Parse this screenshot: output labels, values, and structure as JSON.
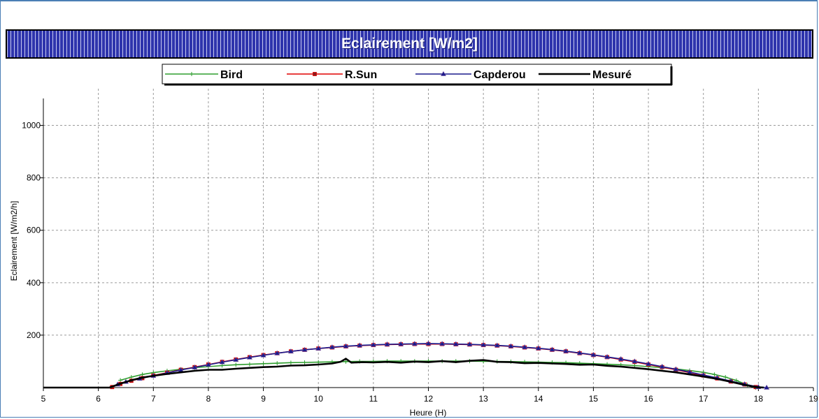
{
  "chart_data": {
    "type": "line",
    "title": "Eclairement [W/m2]",
    "xlabel": "Heure (H)",
    "ylabel": "Eclairement [W/m2/h]",
    "xlim": [
      5,
      19
    ],
    "ylim": [
      0,
      1140
    ],
    "x_ticks": [
      5,
      6,
      7,
      8,
      9,
      10,
      11,
      12,
      13,
      14,
      15,
      16,
      17,
      18,
      19
    ],
    "y_ticks": [
      200,
      400,
      600,
      800,
      1000
    ],
    "grid": true,
    "legend_position": "top-center",
    "series": [
      {
        "name": "Bird",
        "color": "#2e9e2e",
        "marker": "plus",
        "points": [
          [
            6.4,
            28
          ],
          [
            6.6,
            40
          ],
          [
            6.8,
            50
          ],
          [
            7,
            57
          ],
          [
            7.25,
            64
          ],
          [
            7.5,
            70
          ],
          [
            7.75,
            76
          ],
          [
            8,
            80
          ],
          [
            8.25,
            84
          ],
          [
            8.5,
            87
          ],
          [
            8.75,
            89
          ],
          [
            9,
            91
          ],
          [
            9.25,
            93
          ],
          [
            9.5,
            95
          ],
          [
            9.75,
            96
          ],
          [
            10,
            97
          ],
          [
            10.25,
            98
          ],
          [
            10.5,
            99
          ],
          [
            10.75,
            100
          ],
          [
            11,
            100
          ],
          [
            11.25,
            101
          ],
          [
            11.5,
            101
          ],
          [
            11.75,
            101
          ],
          [
            12,
            101
          ],
          [
            12.25,
            101
          ],
          [
            12.5,
            101
          ],
          [
            12.75,
            101
          ],
          [
            13,
            100
          ],
          [
            13.25,
            100
          ],
          [
            13.5,
            99
          ],
          [
            13.75,
            98
          ],
          [
            14,
            97
          ],
          [
            14.25,
            96
          ],
          [
            14.5,
            95
          ],
          [
            14.75,
            93
          ],
          [
            15,
            91
          ],
          [
            15.25,
            89
          ],
          [
            15.5,
            87
          ],
          [
            15.75,
            84
          ],
          [
            16,
            80
          ],
          [
            16.25,
            76
          ],
          [
            16.5,
            71
          ],
          [
            16.75,
            65
          ],
          [
            17,
            58
          ],
          [
            17.2,
            50
          ],
          [
            17.4,
            40
          ],
          [
            17.6,
            27
          ],
          [
            17.8,
            10
          ],
          [
            17.95,
            0
          ]
        ]
      },
      {
        "name": "R.Sun",
        "color": "#e00000",
        "marker": "square",
        "points": [
          [
            6.25,
            2
          ],
          [
            6.4,
            14
          ],
          [
            6.6,
            26
          ],
          [
            6.8,
            36
          ],
          [
            7,
            46
          ],
          [
            7.25,
            57
          ],
          [
            7.5,
            68
          ],
          [
            7.75,
            78
          ],
          [
            8,
            88
          ],
          [
            8.25,
            98
          ],
          [
            8.5,
            107
          ],
          [
            8.75,
            116
          ],
          [
            9,
            124
          ],
          [
            9.25,
            131
          ],
          [
            9.5,
            138
          ],
          [
            9.75,
            144
          ],
          [
            10,
            149
          ],
          [
            10.25,
            153
          ],
          [
            10.5,
            157
          ],
          [
            10.75,
            160
          ],
          [
            11,
            162
          ],
          [
            11.25,
            164
          ],
          [
            11.5,
            165
          ],
          [
            11.75,
            166
          ],
          [
            12,
            166
          ],
          [
            12.25,
            166
          ],
          [
            12.5,
            165
          ],
          [
            12.75,
            164
          ],
          [
            13,
            162
          ],
          [
            13.25,
            160
          ],
          [
            13.5,
            157
          ],
          [
            13.75,
            153
          ],
          [
            14,
            149
          ],
          [
            14.25,
            144
          ],
          [
            14.5,
            138
          ],
          [
            14.75,
            131
          ],
          [
            15,
            124
          ],
          [
            15.25,
            116
          ],
          [
            15.5,
            107
          ],
          [
            15.75,
            98
          ],
          [
            16,
            88
          ],
          [
            16.25,
            78
          ],
          [
            16.5,
            68
          ],
          [
            16.75,
            57
          ],
          [
            17,
            46
          ],
          [
            17.25,
            35
          ],
          [
            17.5,
            23
          ],
          [
            17.75,
            12
          ],
          [
            17.95,
            2
          ]
        ]
      },
      {
        "name": "Capderou",
        "color": "#1a1a8c",
        "marker": "triangle",
        "points": [
          [
            6.35,
            12
          ],
          [
            6.5,
            22
          ],
          [
            6.75,
            34
          ],
          [
            7,
            45
          ],
          [
            7.25,
            56
          ],
          [
            7.5,
            67
          ],
          [
            7.75,
            77
          ],
          [
            8,
            87
          ],
          [
            8.25,
            97
          ],
          [
            8.5,
            106
          ],
          [
            8.75,
            115
          ],
          [
            9,
            123
          ],
          [
            9.25,
            131
          ],
          [
            9.5,
            138
          ],
          [
            9.75,
            144
          ],
          [
            10,
            149
          ],
          [
            10.25,
            154
          ],
          [
            10.5,
            158
          ],
          [
            10.75,
            161
          ],
          [
            11,
            163
          ],
          [
            11.25,
            165
          ],
          [
            11.5,
            166
          ],
          [
            11.75,
            167
          ],
          [
            12,
            168
          ],
          [
            12.25,
            167
          ],
          [
            12.5,
            166
          ],
          [
            12.75,
            165
          ],
          [
            13,
            163
          ],
          [
            13.25,
            161
          ],
          [
            13.5,
            158
          ],
          [
            13.75,
            154
          ],
          [
            14,
            150
          ],
          [
            14.25,
            145
          ],
          [
            14.5,
            139
          ],
          [
            14.75,
            132
          ],
          [
            15,
            125
          ],
          [
            15.25,
            117
          ],
          [
            15.5,
            109
          ],
          [
            15.75,
            100
          ],
          [
            16,
            90
          ],
          [
            16.25,
            80
          ],
          [
            16.5,
            70
          ],
          [
            16.75,
            59
          ],
          [
            17,
            48
          ],
          [
            17.25,
            37
          ],
          [
            17.5,
            25
          ],
          [
            17.75,
            13
          ],
          [
            18,
            2
          ],
          [
            18.15,
            0
          ]
        ]
      },
      {
        "name": "Mesuré",
        "color": "#000000",
        "marker": "none",
        "points": [
          [
            5,
            0
          ],
          [
            6.2,
            0
          ],
          [
            6.4,
            15
          ],
          [
            6.6,
            28
          ],
          [
            6.8,
            38
          ],
          [
            7,
            45
          ],
          [
            7.25,
            52
          ],
          [
            7.5,
            58
          ],
          [
            7.75,
            64
          ],
          [
            8,
            68
          ],
          [
            8.25,
            68
          ],
          [
            8.5,
            72
          ],
          [
            8.75,
            75
          ],
          [
            9,
            78
          ],
          [
            9.25,
            80
          ],
          [
            9.5,
            84
          ],
          [
            9.75,
            85
          ],
          [
            10,
            88
          ],
          [
            10.25,
            92
          ],
          [
            10.4,
            98
          ],
          [
            10.5,
            110
          ],
          [
            10.6,
            95
          ],
          [
            10.8,
            97
          ],
          [
            11,
            96
          ],
          [
            11.25,
            98
          ],
          [
            11.5,
            95
          ],
          [
            11.75,
            99
          ],
          [
            12,
            97
          ],
          [
            12.25,
            101
          ],
          [
            12.5,
            97
          ],
          [
            12.75,
            102
          ],
          [
            13,
            105
          ],
          [
            13.25,
            98
          ],
          [
            13.5,
            97
          ],
          [
            13.75,
            93
          ],
          [
            14,
            94
          ],
          [
            14.25,
            92
          ],
          [
            14.5,
            90
          ],
          [
            14.75,
            87
          ],
          [
            15,
            88
          ],
          [
            15.25,
            83
          ],
          [
            15.5,
            80
          ],
          [
            15.75,
            75
          ],
          [
            16,
            70
          ],
          [
            16.25,
            64
          ],
          [
            16.5,
            58
          ],
          [
            16.75,
            50
          ],
          [
            17,
            42
          ],
          [
            17.25,
            33
          ],
          [
            17.5,
            22
          ],
          [
            17.75,
            10
          ],
          [
            17.95,
            2
          ],
          [
            18.1,
            0
          ]
        ]
      }
    ]
  }
}
